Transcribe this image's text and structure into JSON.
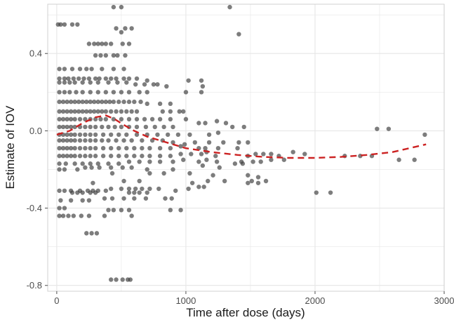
{
  "chart_data": {
    "type": "scatter",
    "xlabel": "Time after dose  (days)",
    "ylabel": "Estimate of IOV",
    "xlim": [
      -70,
      3000
    ],
    "ylim": [
      -0.83,
      0.655
    ],
    "x_ticks": [
      0,
      1000,
      2000,
      3000
    ],
    "x_tick_labels": [
      "0",
      "1000",
      "2000",
      "3000"
    ],
    "y_ticks": [
      -0.8,
      -0.4,
      0.0,
      0.4
    ],
    "y_tick_labels": [
      "-0.8",
      "-0.4",
      "0.0",
      "0.4"
    ],
    "grid": true,
    "legend": "none",
    "colors": {
      "points": "#404040",
      "trend": "#cc2222",
      "grid": "#e6e6e6",
      "panel_border": "#d0d0d0"
    },
    "points": [
      [
        10,
        0.55
      ],
      [
        30,
        0.55
      ],
      [
        60,
        0.55
      ],
      [
        120,
        0.55
      ],
      [
        160,
        0.55
      ],
      [
        440,
        0.64
      ],
      [
        500,
        0.64
      ],
      [
        1340,
        0.64
      ],
      [
        1410,
        0.5
      ],
      [
        460,
        0.53
      ],
      [
        530,
        0.53
      ],
      [
        580,
        0.53
      ],
      [
        500,
        0.51
      ],
      [
        250,
        0.45
      ],
      [
        290,
        0.45
      ],
      [
        320,
        0.45
      ],
      [
        350,
        0.45
      ],
      [
        380,
        0.45
      ],
      [
        420,
        0.45
      ],
      [
        510,
        0.45
      ],
      [
        560,
        0.45
      ],
      [
        300,
        0.39
      ],
      [
        340,
        0.39
      ],
      [
        380,
        0.39
      ],
      [
        440,
        0.39
      ],
      [
        470,
        0.39
      ],
      [
        530,
        0.39
      ],
      [
        20,
        0.32
      ],
      [
        60,
        0.32
      ],
      [
        120,
        0.32
      ],
      [
        180,
        0.32
      ],
      [
        230,
        0.32
      ],
      [
        270,
        0.32
      ],
      [
        350,
        0.32
      ],
      [
        440,
        0.32
      ],
      [
        520,
        0.32
      ],
      [
        20,
        0.27
      ],
      [
        60,
        0.27
      ],
      [
        90,
        0.27
      ],
      [
        130,
        0.27
      ],
      [
        170,
        0.27
      ],
      [
        210,
        0.27
      ],
      [
        250,
        0.27
      ],
      [
        300,
        0.27
      ],
      [
        330,
        0.27
      ],
      [
        380,
        0.27
      ],
      [
        420,
        0.27
      ],
      [
        460,
        0.27
      ],
      [
        520,
        0.27
      ],
      [
        560,
        0.27
      ],
      [
        620,
        0.27
      ],
      [
        700,
        0.26
      ],
      [
        20,
        0.25
      ],
      [
        60,
        0.25
      ],
      [
        100,
        0.25
      ],
      [
        140,
        0.25
      ],
      [
        200,
        0.25
      ],
      [
        260,
        0.25
      ],
      [
        320,
        0.25
      ],
      [
        400,
        0.25
      ],
      [
        470,
        0.25
      ],
      [
        540,
        0.25
      ],
      [
        610,
        0.24
      ],
      [
        680,
        0.24
      ],
      [
        750,
        0.24
      ],
      [
        780,
        0.24
      ],
      [
        850,
        0.23
      ],
      [
        1020,
        0.26
      ],
      [
        1120,
        0.26
      ],
      [
        1130,
        0.23
      ],
      [
        20,
        0.2
      ],
      [
        60,
        0.2
      ],
      [
        100,
        0.2
      ],
      [
        150,
        0.2
      ],
      [
        200,
        0.2
      ],
      [
        260,
        0.2
      ],
      [
        320,
        0.2
      ],
      [
        380,
        0.2
      ],
      [
        440,
        0.2
      ],
      [
        500,
        0.2
      ],
      [
        560,
        0.2
      ],
      [
        640,
        0.2
      ],
      [
        700,
        0.2
      ],
      [
        1000,
        0.2
      ],
      [
        1120,
        0.2
      ],
      [
        20,
        0.15
      ],
      [
        50,
        0.15
      ],
      [
        80,
        0.15
      ],
      [
        110,
        0.15
      ],
      [
        140,
        0.15
      ],
      [
        170,
        0.15
      ],
      [
        200,
        0.15
      ],
      [
        230,
        0.15
      ],
      [
        260,
        0.15
      ],
      [
        290,
        0.15
      ],
      [
        320,
        0.15
      ],
      [
        350,
        0.15
      ],
      [
        380,
        0.15
      ],
      [
        410,
        0.15
      ],
      [
        440,
        0.15
      ],
      [
        480,
        0.15
      ],
      [
        520,
        0.15
      ],
      [
        560,
        0.15
      ],
      [
        600,
        0.15
      ],
      [
        650,
        0.15
      ],
      [
        700,
        0.14
      ],
      [
        800,
        0.14
      ],
      [
        880,
        0.14
      ],
      [
        20,
        0.1
      ],
      [
        50,
        0.1
      ],
      [
        80,
        0.1
      ],
      [
        110,
        0.1
      ],
      [
        140,
        0.1
      ],
      [
        170,
        0.1
      ],
      [
        200,
        0.1
      ],
      [
        230,
        0.1
      ],
      [
        260,
        0.1
      ],
      [
        290,
        0.1
      ],
      [
        320,
        0.1
      ],
      [
        350,
        0.1
      ],
      [
        380,
        0.1
      ],
      [
        420,
        0.1
      ],
      [
        460,
        0.1
      ],
      [
        500,
        0.1
      ],
      [
        540,
        0.1
      ],
      [
        580,
        0.1
      ],
      [
        620,
        0.1
      ],
      [
        820,
        0.1
      ],
      [
        880,
        0.1
      ],
      [
        950,
        0.1
      ],
      [
        980,
        0.1
      ],
      [
        20,
        0.06
      ],
      [
        50,
        0.06
      ],
      [
        80,
        0.06
      ],
      [
        110,
        0.06
      ],
      [
        140,
        0.06
      ],
      [
        180,
        0.06
      ],
      [
        220,
        0.06
      ],
      [
        260,
        0.06
      ],
      [
        300,
        0.06
      ],
      [
        340,
        0.06
      ],
      [
        380,
        0.06
      ],
      [
        440,
        0.06
      ],
      [
        500,
        0.06
      ],
      [
        560,
        0.06
      ],
      [
        620,
        0.06
      ],
      [
        680,
        0.06
      ],
      [
        740,
        0.06
      ],
      [
        800,
        0.06
      ],
      [
        880,
        0.06
      ],
      [
        1000,
        0.06
      ],
      [
        20,
        0.02
      ],
      [
        50,
        0.02
      ],
      [
        80,
        0.02
      ],
      [
        110,
        0.02
      ],
      [
        140,
        0.02
      ],
      [
        180,
        0.02
      ],
      [
        220,
        0.02
      ],
      [
        260,
        0.02
      ],
      [
        300,
        0.02
      ],
      [
        350,
        0.02
      ],
      [
        400,
        0.02
      ],
      [
        450,
        0.02
      ],
      [
        500,
        0.02
      ],
      [
        560,
        0.02
      ],
      [
        620,
        0.02
      ],
      [
        690,
        0.02
      ],
      [
        760,
        0.02
      ],
      [
        830,
        0.02
      ],
      [
        900,
        0.02
      ],
      [
        1100,
        0.04
      ],
      [
        1150,
        0.04
      ],
      [
        1240,
        0.05
      ],
      [
        1310,
        0.04
      ],
      [
        1360,
        0.02
      ],
      [
        1450,
        0.02
      ],
      [
        20,
        -0.02
      ],
      [
        50,
        -0.02
      ],
      [
        80,
        -0.02
      ],
      [
        110,
        -0.02
      ],
      [
        140,
        -0.02
      ],
      [
        180,
        -0.02
      ],
      [
        220,
        -0.02
      ],
      [
        260,
        -0.02
      ],
      [
        300,
        -0.02
      ],
      [
        360,
        -0.02
      ],
      [
        420,
        -0.02
      ],
      [
        480,
        -0.02
      ],
      [
        540,
        -0.02
      ],
      [
        620,
        -0.02
      ],
      [
        700,
        -0.02
      ],
      [
        780,
        -0.02
      ],
      [
        860,
        -0.02
      ],
      [
        940,
        -0.02
      ],
      [
        1030,
        -0.02
      ],
      [
        1180,
        -0.02
      ],
      [
        1250,
        -0.01
      ],
      [
        2480,
        0.01
      ],
      [
        2570,
        0.01
      ],
      [
        2850,
        -0.02
      ],
      [
        20,
        -0.05
      ],
      [
        50,
        -0.05
      ],
      [
        80,
        -0.05
      ],
      [
        110,
        -0.05
      ],
      [
        140,
        -0.05
      ],
      [
        180,
        -0.05
      ],
      [
        220,
        -0.05
      ],
      [
        260,
        -0.05
      ],
      [
        300,
        -0.05
      ],
      [
        350,
        -0.05
      ],
      [
        400,
        -0.05
      ],
      [
        460,
        -0.05
      ],
      [
        520,
        -0.05
      ],
      [
        580,
        -0.05
      ],
      [
        660,
        -0.05
      ],
      [
        740,
        -0.05
      ],
      [
        820,
        -0.05
      ],
      [
        900,
        -0.06
      ],
      [
        990,
        -0.07
      ],
      [
        1070,
        -0.06
      ],
      [
        1180,
        -0.06
      ],
      [
        1290,
        -0.06
      ],
      [
        1410,
        -0.06
      ],
      [
        1480,
        -0.06
      ],
      [
        20,
        -0.09
      ],
      [
        50,
        -0.09
      ],
      [
        80,
        -0.09
      ],
      [
        110,
        -0.09
      ],
      [
        140,
        -0.09
      ],
      [
        180,
        -0.09
      ],
      [
        220,
        -0.09
      ],
      [
        260,
        -0.09
      ],
      [
        300,
        -0.09
      ],
      [
        360,
        -0.09
      ],
      [
        420,
        -0.09
      ],
      [
        480,
        -0.09
      ],
      [
        540,
        -0.09
      ],
      [
        600,
        -0.09
      ],
      [
        660,
        -0.09
      ],
      [
        720,
        -0.09
      ],
      [
        800,
        -0.09
      ],
      [
        880,
        -0.09
      ],
      [
        960,
        -0.08
      ],
      [
        1100,
        -0.09
      ],
      [
        1150,
        -0.09
      ],
      [
        1250,
        -0.09
      ],
      [
        1400,
        -0.09
      ],
      [
        20,
        -0.13
      ],
      [
        50,
        -0.13
      ],
      [
        80,
        -0.13
      ],
      [
        110,
        -0.13
      ],
      [
        140,
        -0.13
      ],
      [
        180,
        -0.13
      ],
      [
        220,
        -0.13
      ],
      [
        260,
        -0.13
      ],
      [
        300,
        -0.13
      ],
      [
        360,
        -0.13
      ],
      [
        420,
        -0.13
      ],
      [
        480,
        -0.13
      ],
      [
        540,
        -0.13
      ],
      [
        600,
        -0.13
      ],
      [
        660,
        -0.13
      ],
      [
        720,
        -0.13
      ],
      [
        800,
        -0.13
      ],
      [
        880,
        -0.13
      ],
      [
        960,
        -0.12
      ],
      [
        1040,
        -0.12
      ],
      [
        1120,
        -0.12
      ],
      [
        1160,
        -0.11
      ],
      [
        1230,
        -0.13
      ],
      [
        1480,
        -0.13
      ],
      [
        1540,
        -0.12
      ],
      [
        1600,
        -0.12
      ],
      [
        1660,
        -0.12
      ],
      [
        1720,
        -0.13
      ],
      [
        1830,
        -0.11
      ],
      [
        1920,
        -0.12
      ],
      [
        2230,
        -0.13
      ],
      [
        2350,
        -0.13
      ],
      [
        2440,
        -0.13
      ],
      [
        2650,
        -0.15
      ],
      [
        2770,
        -0.15
      ],
      [
        20,
        -0.17
      ],
      [
        70,
        -0.17
      ],
      [
        140,
        -0.17
      ],
      [
        200,
        -0.17
      ],
      [
        260,
        -0.17
      ],
      [
        320,
        -0.17
      ],
      [
        400,
        -0.17
      ],
      [
        480,
        -0.17
      ],
      [
        560,
        -0.16
      ],
      [
        640,
        -0.16
      ],
      [
        720,
        -0.16
      ],
      [
        800,
        -0.16
      ],
      [
        900,
        -0.16
      ],
      [
        980,
        -0.15
      ],
      [
        1100,
        -0.16
      ],
      [
        1160,
        -0.15
      ],
      [
        1240,
        -0.16
      ],
      [
        1430,
        -0.16
      ],
      [
        1520,
        -0.16
      ],
      [
        1580,
        -0.16
      ],
      [
        1660,
        -0.15
      ],
      [
        1760,
        -0.15
      ],
      [
        20,
        -0.2
      ],
      [
        60,
        -0.2
      ],
      [
        160,
        -0.2
      ],
      [
        220,
        -0.19
      ],
      [
        270,
        -0.19
      ],
      [
        330,
        -0.19
      ],
      [
        420,
        -0.19
      ],
      [
        510,
        -0.19
      ],
      [
        580,
        -0.19
      ],
      [
        700,
        -0.2
      ],
      [
        900,
        -0.2
      ],
      [
        1130,
        -0.18
      ],
      [
        1260,
        -0.19
      ],
      [
        1380,
        -0.17
      ],
      [
        1440,
        -0.17
      ],
      [
        430,
        -0.22
      ],
      [
        720,
        -0.22
      ],
      [
        830,
        -0.22
      ],
      [
        1030,
        -0.22
      ],
      [
        1210,
        -0.23
      ],
      [
        1480,
        -0.23
      ],
      [
        1560,
        -0.24
      ],
      [
        280,
        -0.27
      ],
      [
        520,
        -0.26
      ],
      [
        640,
        -0.26
      ],
      [
        1050,
        -0.27
      ],
      [
        1170,
        -0.26
      ],
      [
        1300,
        -0.26
      ],
      [
        1480,
        -0.27
      ],
      [
        1510,
        -0.26
      ],
      [
        1560,
        -0.27
      ],
      [
        1620,
        -0.26
      ],
      [
        20,
        -0.31
      ],
      [
        60,
        -0.31
      ],
      [
        110,
        -0.31
      ],
      [
        180,
        -0.31
      ],
      [
        240,
        -0.31
      ],
      [
        280,
        -0.31
      ],
      [
        320,
        -0.31
      ],
      [
        380,
        -0.31
      ],
      [
        420,
        -0.3
      ],
      [
        500,
        -0.3
      ],
      [
        560,
        -0.3
      ],
      [
        610,
        -0.3
      ],
      [
        660,
        -0.3
      ],
      [
        720,
        -0.3
      ],
      [
        790,
        -0.3
      ],
      [
        1100,
        -0.29
      ],
      [
        1140,
        -0.29
      ],
      [
        2010,
        -0.32
      ],
      [
        2120,
        -0.32
      ],
      [
        120,
        -0.32
      ],
      [
        160,
        -0.32
      ],
      [
        200,
        -0.32
      ],
      [
        260,
        -0.32
      ],
      [
        300,
        -0.32
      ],
      [
        560,
        -0.32
      ],
      [
        600,
        -0.32
      ],
      [
        640,
        -0.32
      ],
      [
        700,
        -0.32
      ],
      [
        920,
        -0.31
      ],
      [
        1020,
        -0.3
      ],
      [
        30,
        -0.36
      ],
      [
        110,
        -0.36
      ],
      [
        200,
        -0.36
      ],
      [
        250,
        -0.36
      ],
      [
        370,
        -0.35
      ],
      [
        430,
        -0.35
      ],
      [
        520,
        -0.35
      ],
      [
        600,
        -0.35
      ],
      [
        690,
        -0.35
      ],
      [
        840,
        -0.35
      ],
      [
        890,
        -0.35
      ],
      [
        20,
        -0.4
      ],
      [
        60,
        -0.4
      ],
      [
        400,
        -0.41
      ],
      [
        440,
        -0.41
      ],
      [
        500,
        -0.41
      ],
      [
        560,
        -0.41
      ],
      [
        880,
        -0.41
      ],
      [
        960,
        -0.41
      ],
      [
        20,
        -0.44
      ],
      [
        50,
        -0.44
      ],
      [
        90,
        -0.44
      ],
      [
        130,
        -0.44
      ],
      [
        190,
        -0.44
      ],
      [
        250,
        -0.44
      ],
      [
        370,
        -0.44
      ],
      [
        580,
        -0.44
      ],
      [
        230,
        -0.53
      ],
      [
        270,
        -0.53
      ],
      [
        310,
        -0.53
      ],
      [
        420,
        -0.77
      ],
      [
        460,
        -0.77
      ],
      [
        510,
        -0.77
      ],
      [
        550,
        -0.77
      ],
      [
        570,
        -0.77
      ]
    ],
    "trend_line": {
      "style": "dashed",
      "points": [
        [
          0,
          -0.02
        ],
        [
          100,
          0.0
        ],
        [
          200,
          0.04
        ],
        [
          300,
          0.07
        ],
        [
          380,
          0.08
        ],
        [
          450,
          0.06
        ],
        [
          520,
          0.03
        ],
        [
          600,
          0.0
        ],
        [
          700,
          -0.03
        ],
        [
          800,
          -0.05
        ],
        [
          900,
          -0.07
        ],
        [
          1000,
          -0.09
        ],
        [
          1200,
          -0.11
        ],
        [
          1400,
          -0.125
        ],
        [
          1600,
          -0.135
        ],
        [
          1800,
          -0.14
        ],
        [
          2000,
          -0.14
        ],
        [
          2200,
          -0.135
        ],
        [
          2400,
          -0.125
        ],
        [
          2600,
          -0.11
        ],
        [
          2860,
          -0.07
        ]
      ]
    }
  }
}
